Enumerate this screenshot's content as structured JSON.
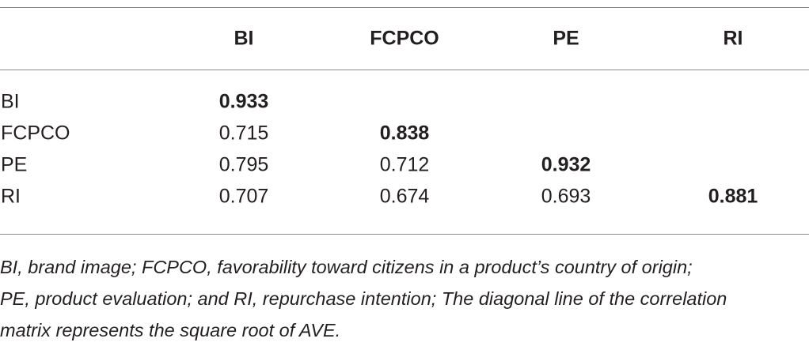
{
  "table": {
    "columns": [
      "BI",
      "FCPCO",
      "PE",
      "RI"
    ],
    "rows": [
      {
        "label": "BI",
        "cells": [
          "0.933",
          "",
          "",
          ""
        ]
      },
      {
        "label": "FCPCO",
        "cells": [
          "0.715",
          "0.838",
          "",
          ""
        ]
      },
      {
        "label": "PE",
        "cells": [
          "0.795",
          "0.712",
          "0.932",
          ""
        ]
      },
      {
        "label": "RI",
        "cells": [
          "0.707",
          "0.674",
          "0.693",
          "0.881"
        ]
      }
    ],
    "bold_diagonal": true
  },
  "footnote": {
    "lines": [
      "BI, brand image; FCPCO, favorability toward citizens in a product’s country of origin;",
      "PE, product evaluation; and RI, repurchase intention; The diagonal line of the correlation",
      "matrix represents the square root of AVE."
    ]
  }
}
